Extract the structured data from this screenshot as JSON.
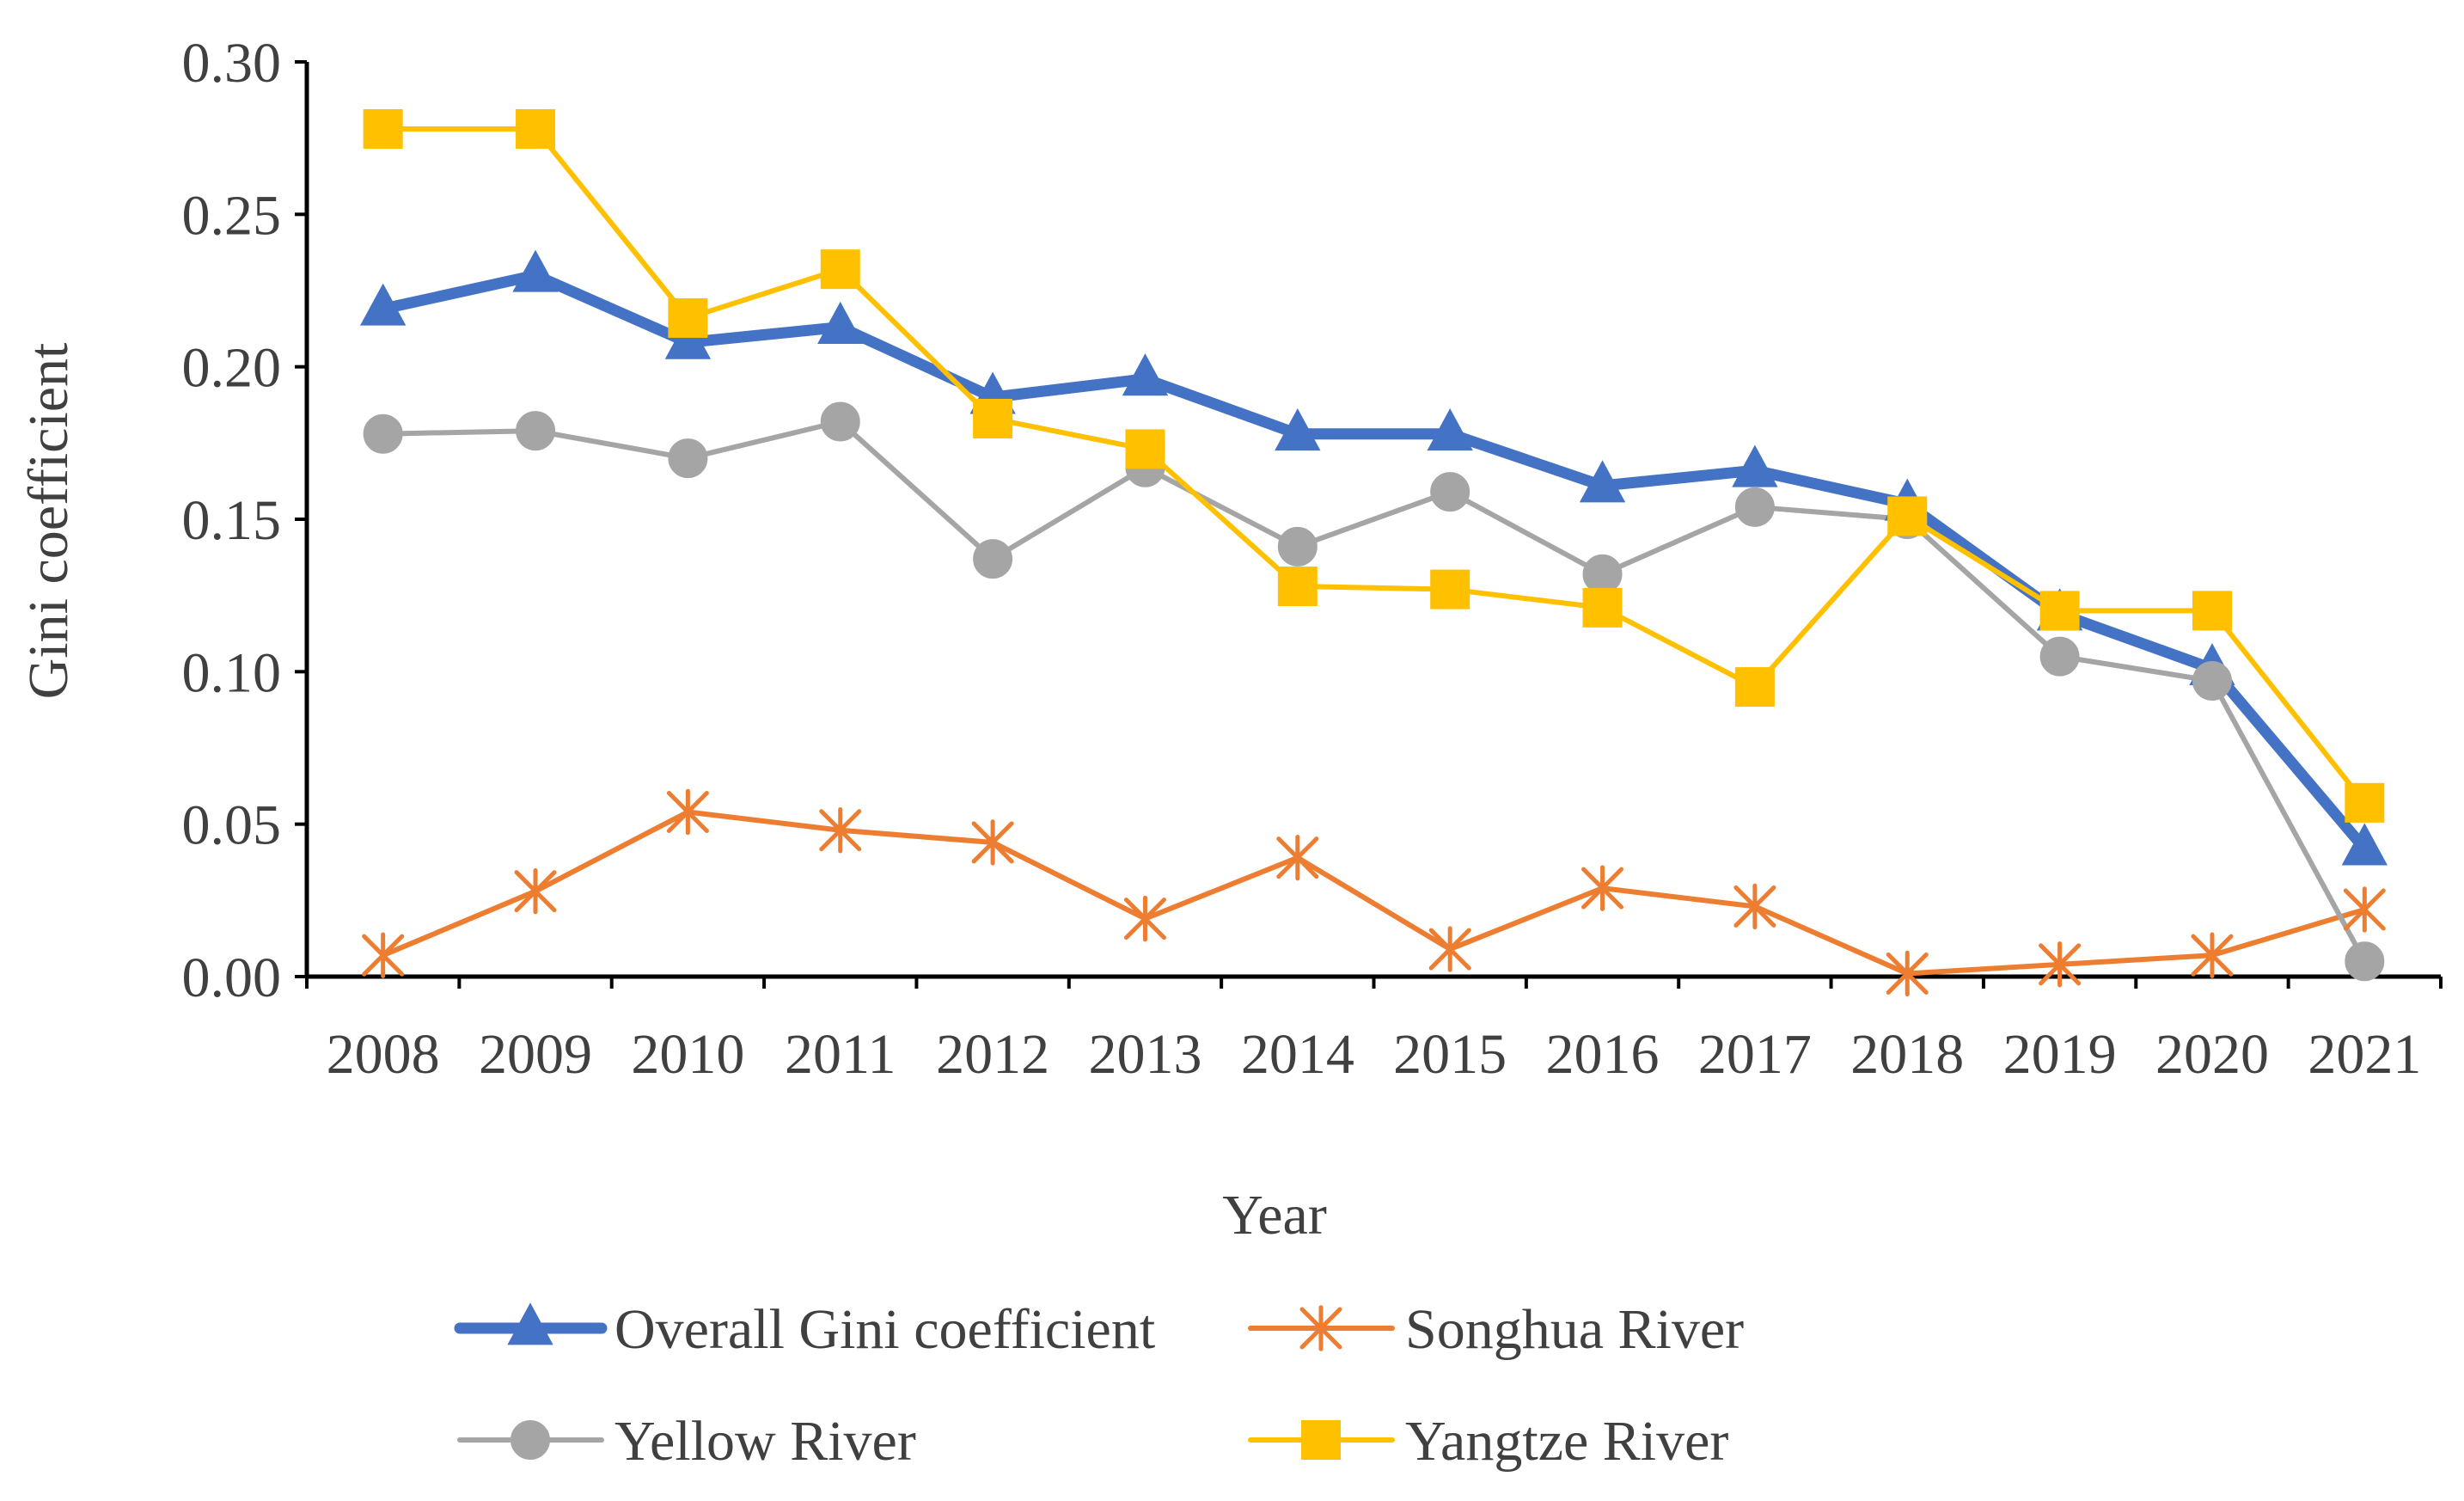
{
  "chart_data": {
    "type": "line",
    "title": "",
    "xlabel": "Year",
    "ylabel": "Gini coefficient",
    "ylim": [
      0,
      0.3
    ],
    "yticks": [
      "0.00",
      "0.05",
      "0.10",
      "0.15",
      "0.20",
      "0.25",
      "0.30"
    ],
    "categories": [
      "2008",
      "2009",
      "2010",
      "2011",
      "2012",
      "2013",
      "2014",
      "2015",
      "2016",
      "2017",
      "2018",
      "2019",
      "2020",
      "2021"
    ],
    "grid": false,
    "legend_position": "bottom",
    "series": [
      {
        "name": "Overall Gini coefficient",
        "color": "#4472C4",
        "marker": "triangle",
        "values": [
          0.219,
          0.23,
          0.208,
          0.213,
          0.19,
          0.196,
          0.178,
          0.178,
          0.161,
          0.166,
          0.155,
          0.119,
          0.101,
          0.042
        ]
      },
      {
        "name": "Songhua River",
        "color": "#ED7D31",
        "marker": "asterisk",
        "values": [
          0.007,
          0.028,
          0.054,
          0.048,
          0.044,
          0.019,
          0.039,
          0.009,
          0.029,
          0.023,
          0.001,
          0.004,
          0.007,
          0.022
        ]
      },
      {
        "name": "Yellow River",
        "color": "#A5A5A5",
        "marker": "circle",
        "values": [
          0.178,
          0.179,
          0.17,
          0.182,
          0.137,
          0.167,
          0.141,
          0.159,
          0.132,
          0.154,
          0.15,
          0.105,
          0.097,
          0.005
        ]
      },
      {
        "name": "Yangtze River",
        "color": "#FFC000",
        "marker": "square",
        "values": [
          0.278,
          0.278,
          0.216,
          0.232,
          0.183,
          0.173,
          0.128,
          0.127,
          0.121,
          0.095,
          0.151,
          0.12,
          0.12,
          0.057
        ]
      }
    ]
  }
}
